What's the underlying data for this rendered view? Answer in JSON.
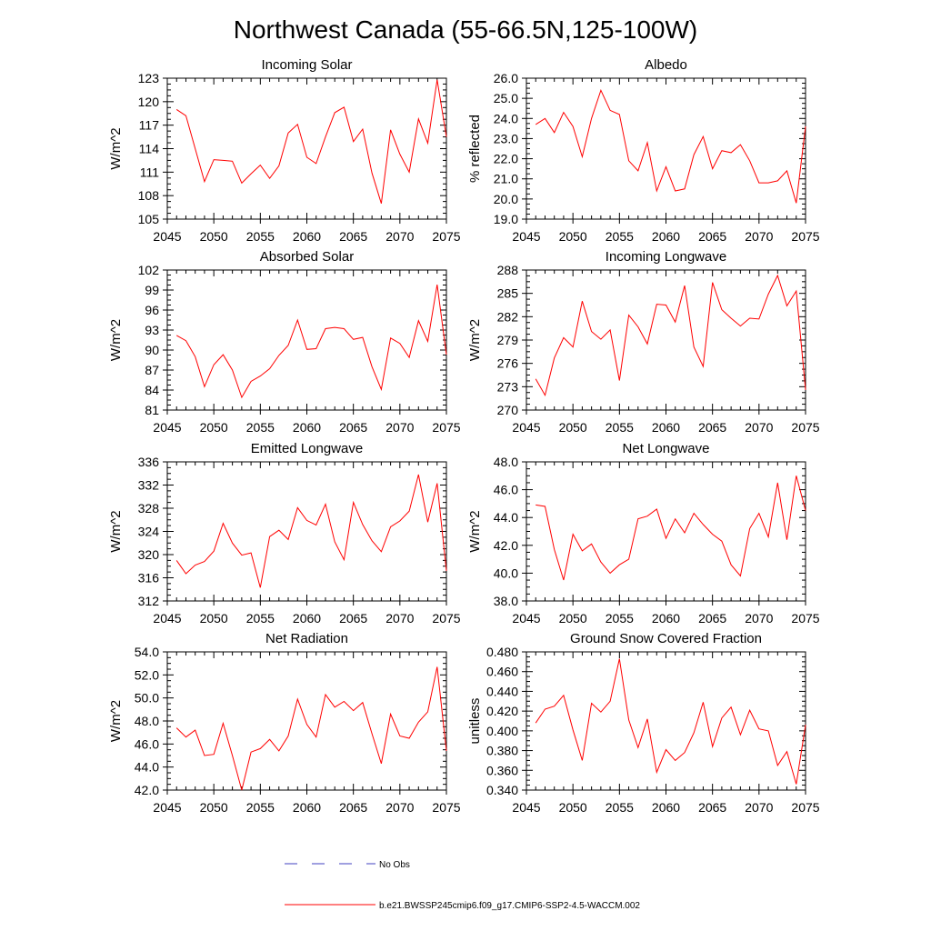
{
  "title": "Northwest Canada (55-66.5N,125-100W)",
  "colors": {
    "series": "#ff0000",
    "obs": "#4040c0",
    "axis": "#000000"
  },
  "legend": {
    "obs_label": "No Obs",
    "model_label": "b.e21.BWSSP245cmip6.f09_g17.CMIP6-SSP2-4.5-WACCM.002"
  },
  "chart_data": [
    {
      "type": "line",
      "title": "Incoming Solar",
      "ylabel": "W/m^2",
      "xlim": [
        2045,
        2075
      ],
      "ylim": [
        105,
        123
      ],
      "xticks": [
        2045,
        2050,
        2055,
        2060,
        2065,
        2070,
        2075
      ],
      "xtick_labels": [
        "2045",
        "2050",
        "2055",
        "2060",
        "2065",
        "2070",
        "2075"
      ],
      "yticks": [
        105,
        108,
        111,
        114,
        117,
        120,
        123
      ],
      "ytick_labels": [
        "105",
        "108",
        "111",
        "114",
        "117",
        "120",
        "123"
      ],
      "x": [
        2046,
        2047,
        2048,
        2049,
        2050,
        2051,
        2052,
        2053,
        2054,
        2055,
        2056,
        2057,
        2058,
        2059,
        2060,
        2061,
        2062,
        2063,
        2064,
        2065,
        2066,
        2067,
        2068,
        2069,
        2070,
        2071,
        2072,
        2073,
        2074,
        2075
      ],
      "y": [
        119.0,
        118.2,
        114.0,
        109.8,
        112.6,
        112.5,
        112.4,
        109.6,
        110.8,
        111.9,
        110.2,
        111.8,
        116.0,
        117.1,
        112.9,
        112.1,
        115.5,
        118.6,
        119.3,
        114.9,
        116.5,
        110.9,
        107.0,
        116.4,
        113.3,
        111.0,
        117.8,
        114.7,
        122.8,
        115.5
      ]
    },
    {
      "type": "line",
      "title": "Albedo",
      "ylabel": "% reflected",
      "xlim": [
        2045,
        2075
      ],
      "ylim": [
        19.0,
        26.0
      ],
      "xticks": [
        2045,
        2050,
        2055,
        2060,
        2065,
        2070,
        2075
      ],
      "xtick_labels": [
        "2045",
        "2050",
        "2055",
        "2060",
        "2065",
        "2070",
        "2075"
      ],
      "yticks": [
        19.0,
        20.0,
        21.0,
        22.0,
        23.0,
        24.0,
        25.0,
        26.0
      ],
      "ytick_labels": [
        "19.0",
        "20.0",
        "21.0",
        "22.0",
        "23.0",
        "24.0",
        "25.0",
        "26.0"
      ],
      "x": [
        2046,
        2047,
        2048,
        2049,
        2050,
        2051,
        2052,
        2053,
        2054,
        2055,
        2056,
        2057,
        2058,
        2059,
        2060,
        2061,
        2062,
        2063,
        2064,
        2065,
        2066,
        2067,
        2068,
        2069,
        2070,
        2071,
        2072,
        2073,
        2074,
        2075
      ],
      "y": [
        23.7,
        24.0,
        23.3,
        24.3,
        23.6,
        22.1,
        24.0,
        25.4,
        24.4,
        24.2,
        21.9,
        21.4,
        22.8,
        20.4,
        21.6,
        20.4,
        20.5,
        22.2,
        23.1,
        21.5,
        22.4,
        22.3,
        22.7,
        21.9,
        20.8,
        20.8,
        20.9,
        21.4,
        19.8,
        23.6
      ]
    },
    {
      "type": "line",
      "title": "Absorbed Solar",
      "ylabel": "W/m^2",
      "xlim": [
        2045,
        2075
      ],
      "ylim": [
        81,
        102
      ],
      "xticks": [
        2045,
        2050,
        2055,
        2060,
        2065,
        2070,
        2075
      ],
      "xtick_labels": [
        "2045",
        "2050",
        "2055",
        "2060",
        "2065",
        "2070",
        "2075"
      ],
      "yticks": [
        81,
        84,
        87,
        90,
        93,
        96,
        99,
        102
      ],
      "ytick_labels": [
        "81",
        "84",
        "87",
        "90",
        "93",
        "96",
        "99",
        "102"
      ],
      "x": [
        2046,
        2047,
        2048,
        2049,
        2050,
        2051,
        2052,
        2053,
        2054,
        2055,
        2056,
        2057,
        2058,
        2059,
        2060,
        2061,
        2062,
        2063,
        2064,
        2065,
        2066,
        2067,
        2068,
        2069,
        2070,
        2071,
        2072,
        2073,
        2074,
        2075
      ],
      "y": [
        92.2,
        91.4,
        89.0,
        84.5,
        87.8,
        89.3,
        87.0,
        82.9,
        85.3,
        86.1,
        87.2,
        89.2,
        90.7,
        94.5,
        90.1,
        90.2,
        93.2,
        93.4,
        93.2,
        91.6,
        91.9,
        87.5,
        84.1,
        91.8,
        91.0,
        88.9,
        94.4,
        91.3,
        99.8,
        89.3
      ]
    },
    {
      "type": "line",
      "title": "Incoming Longwave",
      "ylabel": "W/m^2",
      "xlim": [
        2045,
        2075
      ],
      "ylim": [
        270,
        288
      ],
      "xticks": [
        2045,
        2050,
        2055,
        2060,
        2065,
        2070,
        2075
      ],
      "xtick_labels": [
        "2045",
        "2050",
        "2055",
        "2060",
        "2065",
        "2070",
        "2075"
      ],
      "yticks": [
        270,
        273,
        276,
        279,
        282,
        285,
        288
      ],
      "ytick_labels": [
        "270",
        "273",
        "276",
        "279",
        "282",
        "285",
        "288"
      ],
      "x": [
        2046,
        2047,
        2048,
        2049,
        2050,
        2051,
        2052,
        2053,
        2054,
        2055,
        2056,
        2057,
        2058,
        2059,
        2060,
        2061,
        2062,
        2063,
        2064,
        2065,
        2066,
        2067,
        2068,
        2069,
        2070,
        2071,
        2072,
        2073,
        2074,
        2075
      ],
      "y": [
        274.0,
        271.9,
        276.7,
        279.3,
        278.1,
        284.0,
        280.1,
        279.1,
        280.3,
        273.8,
        282.2,
        280.7,
        278.5,
        283.6,
        283.5,
        281.3,
        286.0,
        278.1,
        275.6,
        286.4,
        282.9,
        281.8,
        280.8,
        281.8,
        281.7,
        284.9,
        287.3,
        283.4,
        285.3,
        272.6
      ]
    },
    {
      "type": "line",
      "title": "Emitted Longwave",
      "ylabel": "W/m^2",
      "xlim": [
        2045,
        2075
      ],
      "ylim": [
        312,
        336
      ],
      "xticks": [
        2045,
        2050,
        2055,
        2060,
        2065,
        2070,
        2075
      ],
      "xtick_labels": [
        "2045",
        "2050",
        "2055",
        "2060",
        "2065",
        "2070",
        "2075"
      ],
      "yticks": [
        312,
        316,
        320,
        324,
        328,
        332,
        336
      ],
      "ytick_labels": [
        "312",
        "316",
        "320",
        "324",
        "328",
        "332",
        "336"
      ],
      "x": [
        2046,
        2047,
        2048,
        2049,
        2050,
        2051,
        2052,
        2053,
        2054,
        2055,
        2056,
        2057,
        2058,
        2059,
        2060,
        2061,
        2062,
        2063,
        2064,
        2065,
        2066,
        2067,
        2068,
        2069,
        2070,
        2071,
        2072,
        2073,
        2074,
        2075
      ],
      "y": [
        319.0,
        316.7,
        318.2,
        318.8,
        320.6,
        325.4,
        322.0,
        319.9,
        320.3,
        314.3,
        323.1,
        324.2,
        322.6,
        328.1,
        325.9,
        325.1,
        328.7,
        322.2,
        319.1,
        329.0,
        325.2,
        322.4,
        320.5,
        324.8,
        325.8,
        327.5,
        333.8,
        325.6,
        332.3,
        317.2
      ]
    },
    {
      "type": "line",
      "title": "Net Longwave",
      "ylabel": "W/m^2",
      "xlim": [
        2045,
        2075
      ],
      "ylim": [
        38.0,
        48.0
      ],
      "xticks": [
        2045,
        2050,
        2055,
        2060,
        2065,
        2070,
        2075
      ],
      "xtick_labels": [
        "2045",
        "2050",
        "2055",
        "2060",
        "2065",
        "2070",
        "2075"
      ],
      "yticks": [
        38.0,
        40.0,
        42.0,
        44.0,
        46.0,
        48.0
      ],
      "ytick_labels": [
        "38.0",
        "40.0",
        "42.0",
        "44.0",
        "46.0",
        "48.0"
      ],
      "x": [
        2046,
        2047,
        2048,
        2049,
        2050,
        2051,
        2052,
        2053,
        2054,
        2055,
        2056,
        2057,
        2058,
        2059,
        2060,
        2061,
        2062,
        2063,
        2064,
        2065,
        2066,
        2067,
        2068,
        2069,
        2070,
        2071,
        2072,
        2073,
        2074,
        2075
      ],
      "y": [
        44.9,
        44.8,
        41.7,
        39.5,
        42.8,
        41.6,
        42.1,
        40.8,
        40.0,
        40.6,
        41.0,
        43.9,
        44.1,
        44.6,
        42.5,
        43.9,
        42.9,
        44.3,
        43.5,
        42.8,
        42.3,
        40.6,
        39.8,
        43.2,
        44.3,
        42.6,
        46.5,
        42.4,
        47.0,
        44.5
      ]
    },
    {
      "type": "line",
      "title": "Net Radiation",
      "ylabel": "W/m^2",
      "xlim": [
        2045,
        2075
      ],
      "ylim": [
        42.0,
        54.0
      ],
      "xticks": [
        2045,
        2050,
        2055,
        2060,
        2065,
        2070,
        2075
      ],
      "xtick_labels": [
        "2045",
        "2050",
        "2055",
        "2060",
        "2065",
        "2070",
        "2075"
      ],
      "yticks": [
        42.0,
        44.0,
        46.0,
        48.0,
        50.0,
        52.0,
        54.0
      ],
      "ytick_labels": [
        "42.0",
        "44.0",
        "46.0",
        "48.0",
        "50.0",
        "52.0",
        "54.0"
      ],
      "x": [
        2046,
        2047,
        2048,
        2049,
        2050,
        2051,
        2052,
        2053,
        2054,
        2055,
        2056,
        2057,
        2058,
        2059,
        2060,
        2061,
        2062,
        2063,
        2064,
        2065,
        2066,
        2067,
        2068,
        2069,
        2070,
        2071,
        2072,
        2073,
        2074,
        2075
      ],
      "y": [
        47.4,
        46.6,
        47.2,
        45.0,
        45.1,
        47.8,
        45.0,
        42.0,
        45.3,
        45.6,
        46.4,
        45.4,
        46.7,
        49.9,
        47.7,
        46.6,
        50.3,
        49.2,
        49.7,
        48.9,
        49.6,
        46.9,
        44.3,
        48.6,
        46.7,
        46.5,
        47.9,
        48.8,
        52.7,
        45.4
      ]
    },
    {
      "type": "line",
      "title": "Ground Snow Covered Fraction",
      "ylabel": "unitless",
      "xlim": [
        2045,
        2075
      ],
      "ylim": [
        0.34,
        0.48
      ],
      "xticks": [
        2045,
        2050,
        2055,
        2060,
        2065,
        2070,
        2075
      ],
      "xtick_labels": [
        "2045",
        "2050",
        "2055",
        "2060",
        "2065",
        "2070",
        "2075"
      ],
      "yticks": [
        0.34,
        0.36,
        0.38,
        0.4,
        0.42,
        0.44,
        0.46,
        0.48
      ],
      "ytick_labels": [
        "0.340",
        "0.360",
        "0.380",
        "0.400",
        "0.420",
        "0.440",
        "0.460",
        "0.480"
      ],
      "x": [
        2046,
        2047,
        2048,
        2049,
        2050,
        2051,
        2052,
        2053,
        2054,
        2055,
        2056,
        2057,
        2058,
        2059,
        2060,
        2061,
        2062,
        2063,
        2064,
        2065,
        2066,
        2067,
        2068,
        2069,
        2070,
        2071,
        2072,
        2073,
        2074,
        2075
      ],
      "y": [
        0.408,
        0.422,
        0.425,
        0.436,
        0.401,
        0.37,
        0.428,
        0.419,
        0.43,
        0.473,
        0.411,
        0.383,
        0.412,
        0.358,
        0.381,
        0.37,
        0.378,
        0.398,
        0.429,
        0.384,
        0.413,
        0.424,
        0.396,
        0.421,
        0.402,
        0.4,
        0.365,
        0.379,
        0.346,
        0.406
      ]
    }
  ]
}
